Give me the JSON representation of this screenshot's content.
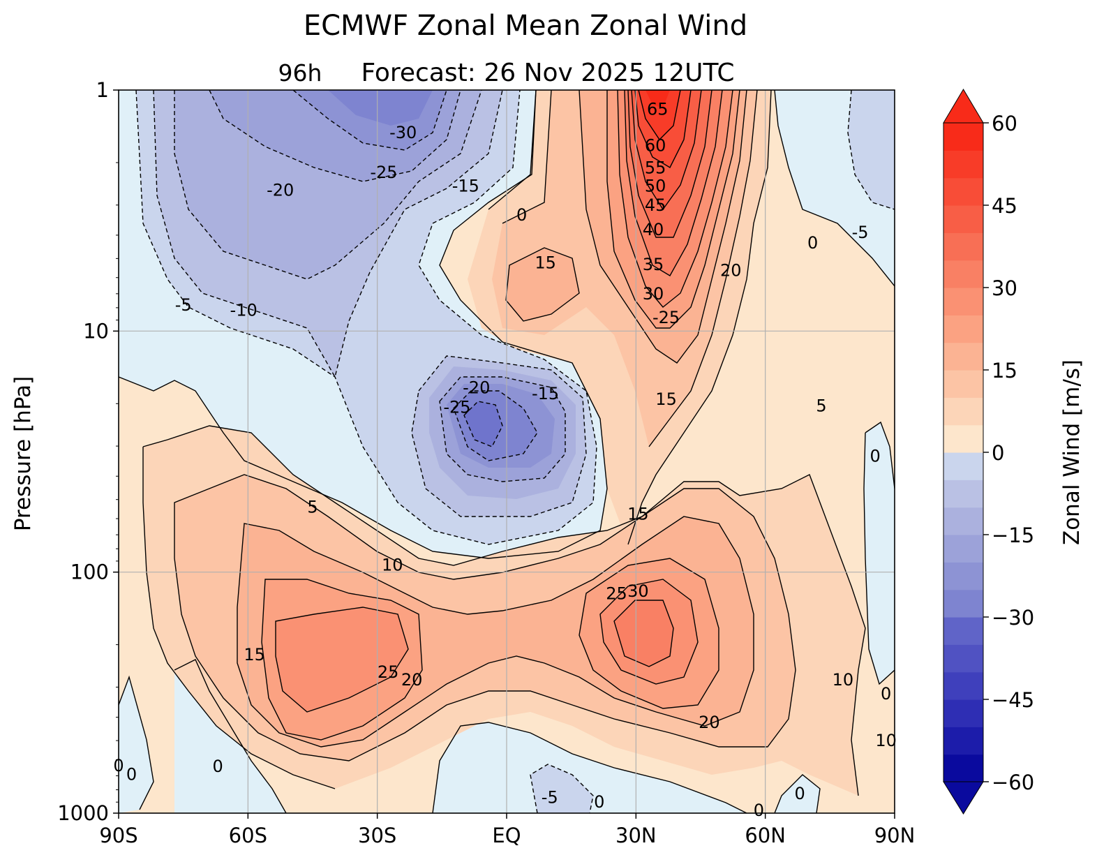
{
  "chart_data": {
    "type": "contour",
    "title": "ECMWF Zonal Mean Zonal Wind",
    "subtitle_prefix": "96h",
    "subtitle": "Forecast:  26 Nov 2025  12UTC",
    "xlabel": "",
    "ylabel": "Pressure [hPa]",
    "x_ticks": [
      "90S",
      "60S",
      "30S",
      "EQ",
      "30N",
      "60N",
      "90N"
    ],
    "x_tick_values": [
      -90,
      -60,
      -30,
      0,
      30,
      60,
      90
    ],
    "y_scale": "log",
    "y_ticks": [
      "1",
      "10",
      "100",
      "1000"
    ],
    "y_tick_values": [
      1,
      10,
      100,
      1000
    ],
    "ylim": [
      1000,
      1
    ],
    "xlim": [
      -90,
      90
    ],
    "grid": true,
    "colorbar": {
      "label": "Zonal Wind [m/s]",
      "range": [
        -60,
        60
      ],
      "step": 5,
      "ticks": [
        "60",
        "45",
        "30",
        "15",
        "0",
        "−15",
        "−30",
        "−45",
        "−60"
      ],
      "tick_values": [
        60,
        45,
        30,
        15,
        0,
        -15,
        -30,
        -45,
        -60
      ],
      "extend": "both",
      "colors": {
        "neg": [
          "#0a0a9e",
          "#1c1caa",
          "#2e2eb4",
          "#3f40bc",
          "#5052c2",
          "#6064c8",
          "#6f74cc",
          "#7e84d0",
          "#8d93d4",
          "#9ca2d9",
          "#abb1de",
          "#bac1e4",
          "#cad5ed",
          "#e0f0f8"
        ],
        "pos": [
          "#fde6cc",
          "#fcd5b8",
          "#fcc4a5",
          "#fbb393",
          "#fba282",
          "#fa9173",
          "#f98064",
          "#f86f55",
          "#f85e46",
          "#f84d37",
          "#f83c28",
          "#f82b19"
        ]
      }
    },
    "contour_labels": [
      {
        "text": "-30",
        "lat": -24,
        "p": 1.5
      },
      {
        "text": "-25",
        "lat": -28.5,
        "p": 2.2
      },
      {
        "text": "-20",
        "lat": -52.5,
        "p": 2.6
      },
      {
        "text": "-15",
        "lat": -9.5,
        "p": 2.5
      },
      {
        "text": "0",
        "lat": 3.5,
        "p": 3.3
      },
      {
        "text": "-5",
        "lat": -75,
        "p": 7.8
      },
      {
        "text": "-10",
        "lat": -61,
        "p": 8.2
      },
      {
        "text": "65",
        "lat": 35,
        "p": 1.2
      },
      {
        "text": "60",
        "lat": 34.5,
        "p": 1.7
      },
      {
        "text": "55",
        "lat": 34.5,
        "p": 2.1
      },
      {
        "text": "50",
        "lat": 34.5,
        "p": 2.5
      },
      {
        "text": "45",
        "lat": 34.5,
        "p": 3
      },
      {
        "text": "40",
        "lat": 34,
        "p": 3.8
      },
      {
        "text": "35",
        "lat": 34,
        "p": 5.3
      },
      {
        "text": "30",
        "lat": 34,
        "p": 7
      },
      {
        "text": "-25",
        "lat": 37,
        "p": 8.8
      },
      {
        "text": "15",
        "lat": 9,
        "p": 5.2
      },
      {
        "text": "20",
        "lat": 52,
        "p": 5.6
      },
      {
        "text": "0",
        "lat": 71,
        "p": 4.3
      },
      {
        "text": "-5",
        "lat": 82,
        "p": 3.9
      },
      {
        "text": "-20",
        "lat": -7,
        "p": 17.2
      },
      {
        "text": "-15",
        "lat": 9,
        "p": 18.2
      },
      {
        "text": "-25",
        "lat": -11.5,
        "p": 20.7
      },
      {
        "text": "15",
        "lat": 37,
        "p": 19.2
      },
      {
        "text": "5",
        "lat": 73,
        "p": 20.4
      },
      {
        "text": "0",
        "lat": 85.5,
        "p": 33
      },
      {
        "text": "5",
        "lat": -45,
        "p": 53.8
      },
      {
        "text": "15",
        "lat": 30.5,
        "p": 57.5
      },
      {
        "text": "10",
        "lat": -26.5,
        "p": 93.5
      },
      {
        "text": "25",
        "lat": 25.5,
        "p": 123
      },
      {
        "text": "30",
        "lat": 30.5,
        "p": 120
      },
      {
        "text": "15",
        "lat": -58.5,
        "p": 220
      },
      {
        "text": "25",
        "lat": -27.5,
        "p": 260
      },
      {
        "text": "20",
        "lat": -22,
        "p": 280
      },
      {
        "text": "10",
        "lat": 78,
        "p": 280
      },
      {
        "text": "0",
        "lat": 88,
        "p": 320
      },
      {
        "text": "20",
        "lat": 47,
        "p": 420
      },
      {
        "text": "10",
        "lat": 88,
        "p": 500
      },
      {
        "text": "0",
        "lat": -90,
        "p": 635
      },
      {
        "text": "0",
        "lat": -87,
        "p": 690
      },
      {
        "text": "0",
        "lat": -67,
        "p": 640
      },
      {
        "text": "-5",
        "lat": 10,
        "p": 860
      },
      {
        "text": "0",
        "lat": 21.5,
        "p": 900
      },
      {
        "text": "0",
        "lat": 68,
        "p": 830
      },
      {
        "text": "0",
        "lat": 58.5,
        "p": 975
      }
    ]
  }
}
